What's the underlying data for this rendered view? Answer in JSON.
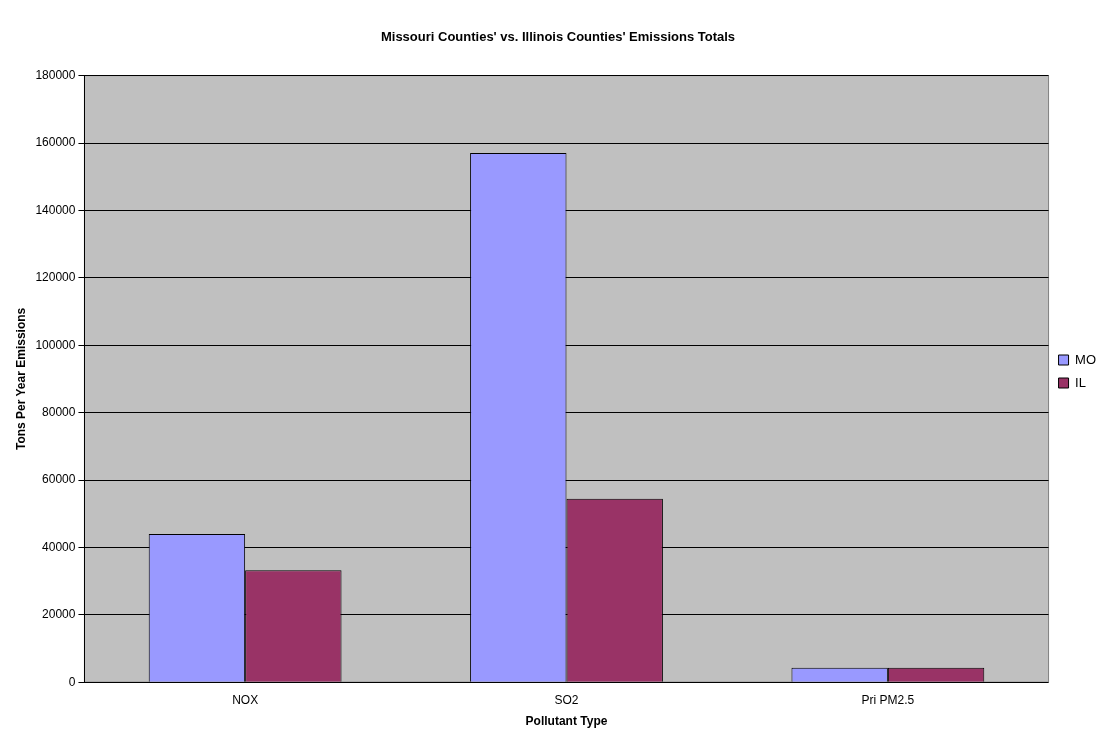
{
  "chart_data": {
    "type": "bar",
    "title": "Missouri Counties' vs. Illinois Counties' Emissions Totals",
    "xlabel": "Pollutant Type",
    "ylabel": "Tons Per Year Emissions",
    "categories": [
      "NOX",
      "SO2",
      "Pri PM2.5"
    ],
    "series": [
      {
        "name": "MO",
        "color": "#9999ff",
        "values": [
          44000,
          157000,
          4300
        ]
      },
      {
        "name": "IL",
        "color": "#993366",
        "values": [
          33200,
          54400,
          4300
        ]
      }
    ],
    "ylim": [
      0,
      180000
    ],
    "yticks": [
      0,
      20000,
      40000,
      60000,
      80000,
      100000,
      120000,
      140000,
      160000,
      180000
    ],
    "grid": "y",
    "legend": "right"
  }
}
